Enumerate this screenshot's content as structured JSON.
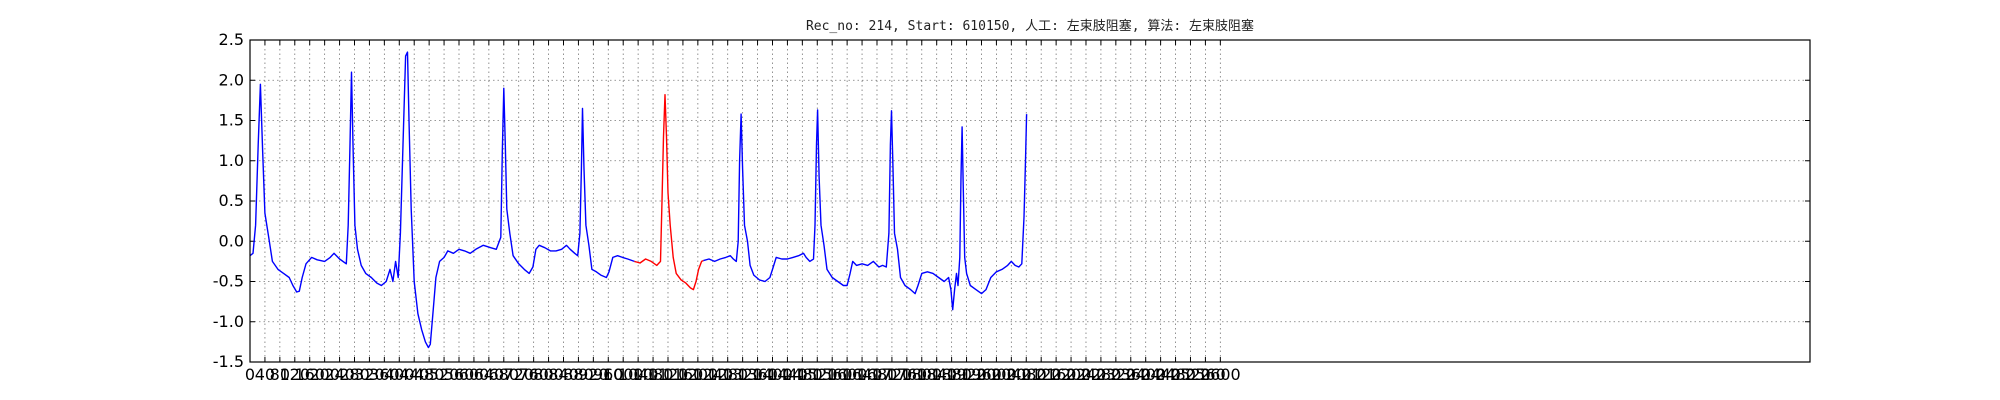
{
  "chart_data": {
    "type": "line",
    "title": "Rec_no: 214, Start: 610150, 人工: 左束肢阻塞, 算法: 左束肢阻塞",
    "xlabel": "",
    "ylabel": "",
    "xlim": [
      0,
      4180
    ],
    "ylim": [
      -1.5,
      2.5
    ],
    "grid": true,
    "x_ticks": [
      0,
      40,
      80,
      120,
      160,
      200,
      240,
      280,
      320,
      360,
      400,
      440,
      480,
      520,
      560,
      600,
      640,
      680,
      720,
      760,
      800,
      840,
      880,
      920,
      960,
      1000,
      1040,
      1080,
      1120,
      1160,
      1200,
      1240,
      1280,
      1320,
      1360,
      1400,
      1440,
      1480,
      1520,
      1560,
      1600,
      1640,
      1680,
      1720,
      1760,
      1800,
      1840,
      1880,
      1920,
      1960,
      2000,
      2040,
      2080,
      2120,
      2160,
      2200,
      2240,
      2280,
      2320,
      2360,
      2400,
      2440,
      2480,
      2520,
      2560,
      2600
    ],
    "y_ticks": [
      "2.5",
      "2.0",
      "1.5",
      "1.0",
      "0.5",
      "0.0",
      "-0.5",
      "-1.0",
      "-1.5"
    ],
    "series": [
      {
        "color": "#0000ff",
        "points": [
          [
            0,
            -0.18
          ],
          [
            8,
            -0.15
          ],
          [
            15,
            0.2
          ],
          [
            22,
            1.2
          ],
          [
            28,
            1.95
          ],
          [
            34,
            1.1
          ],
          [
            40,
            0.35
          ],
          [
            50,
            0.05
          ],
          [
            60,
            -0.25
          ],
          [
            75,
            -0.35
          ],
          [
            90,
            -0.4
          ],
          [
            105,
            -0.45
          ],
          [
            115,
            -0.55
          ],
          [
            125,
            -0.63
          ],
          [
            132,
            -0.62
          ],
          [
            140,
            -0.45
          ],
          [
            150,
            -0.28
          ],
          [
            165,
            -0.2
          ],
          [
            180,
            -0.23
          ],
          [
            200,
            -0.25
          ],
          [
            215,
            -0.2
          ],
          [
            225,
            -0.15
          ],
          [
            240,
            -0.22
          ],
          [
            258,
            -0.28
          ],
          [
            263,
            0.2
          ],
          [
            268,
            1.2
          ],
          [
            272,
            2.1
          ],
          [
            276,
            1.2
          ],
          [
            281,
            0.2
          ],
          [
            288,
            -0.1
          ],
          [
            298,
            -0.3
          ],
          [
            310,
            -0.4
          ],
          [
            325,
            -0.45
          ],
          [
            340,
            -0.52
          ],
          [
            352,
            -0.55
          ],
          [
            365,
            -0.5
          ],
          [
            375,
            -0.35
          ],
          [
            383,
            -0.5
          ],
          [
            390,
            -0.25
          ],
          [
            397,
            -0.45
          ],
          [
            403,
            0.1
          ],
          [
            410,
            1.2
          ],
          [
            417,
            2.3
          ],
          [
            422,
            2.35
          ],
          [
            426,
            1.5
          ],
          [
            432,
            0.4
          ],
          [
            440,
            -0.5
          ],
          [
            450,
            -0.9
          ],
          [
            460,
            -1.1
          ],
          [
            470,
            -1.25
          ],
          [
            478,
            -1.32
          ],
          [
            483,
            -1.28
          ],
          [
            490,
            -0.9
          ],
          [
            498,
            -0.45
          ],
          [
            508,
            -0.25
          ],
          [
            520,
            -0.2
          ],
          [
            530,
            -0.12
          ],
          [
            545,
            -0.15
          ],
          [
            560,
            -0.1
          ],
          [
            575,
            -0.12
          ],
          [
            590,
            -0.15
          ],
          [
            605,
            -0.1
          ],
          [
            625,
            -0.05
          ],
          [
            645,
            -0.08
          ],
          [
            660,
            -0.1
          ],
          [
            672,
            0.05
          ],
          [
            676,
            1.1
          ],
          [
            680,
            1.9
          ],
          [
            684,
            1.2
          ],
          [
            688,
            0.4
          ],
          [
            696,
            0.1
          ],
          [
            705,
            -0.18
          ],
          [
            720,
            -0.28
          ],
          [
            735,
            -0.35
          ],
          [
            748,
            -0.4
          ],
          [
            758,
            -0.32
          ],
          [
            766,
            -0.1
          ],
          [
            775,
            -0.05
          ],
          [
            790,
            -0.08
          ],
          [
            805,
            -0.12
          ],
          [
            820,
            -0.12
          ],
          [
            835,
            -0.1
          ],
          [
            848,
            -0.05
          ],
          [
            858,
            -0.1
          ],
          [
            870,
            -0.15
          ],
          [
            878,
            -0.18
          ],
          [
            884,
            0.1
          ],
          [
            888,
            0.9
          ],
          [
            891,
            1.65
          ],
          [
            895,
            0.9
          ],
          [
            900,
            0.2
          ],
          [
            908,
            -0.05
          ],
          [
            916,
            -0.35
          ],
          [
            928,
            -0.38
          ],
          [
            940,
            -0.42
          ],
          [
            955,
            -0.45
          ],
          [
            962,
            -0.38
          ],
          [
            972,
            -0.2
          ],
          [
            985,
            -0.18
          ],
          [
            998,
            -0.2
          ],
          [
            1012,
            -0.22
          ],
          [
            1030,
            -0.25
          ]
        ]
      },
      {
        "color": "#ff0000",
        "points": [
          [
            1030,
            -0.25
          ],
          [
            1045,
            -0.27
          ],
          [
            1060,
            -0.22
          ],
          [
            1075,
            -0.25
          ],
          [
            1090,
            -0.3
          ],
          [
            1100,
            -0.25
          ],
          [
            1104,
            0.5
          ],
          [
            1108,
            1.3
          ],
          [
            1112,
            1.82
          ],
          [
            1116,
            1.3
          ],
          [
            1120,
            0.6
          ],
          [
            1126,
            0.2
          ],
          [
            1134,
            -0.2
          ],
          [
            1142,
            -0.4
          ],
          [
            1155,
            -0.48
          ],
          [
            1168,
            -0.52
          ],
          [
            1180,
            -0.58
          ],
          [
            1188,
            -0.6
          ],
          [
            1195,
            -0.5
          ],
          [
            1202,
            -0.35
          ],
          [
            1210,
            -0.25
          ],
          [
            1215,
            -0.24
          ]
        ]
      },
      {
        "color": "#0000ff",
        "points": [
          [
            1215,
            -0.24
          ],
          [
            1230,
            -0.22
          ],
          [
            1245,
            -0.25
          ],
          [
            1260,
            -0.22
          ],
          [
            1275,
            -0.2
          ],
          [
            1287,
            -0.18
          ],
          [
            1295,
            -0.22
          ],
          [
            1303,
            -0.25
          ],
          [
            1308,
            0.0
          ],
          [
            1312,
            1.0
          ],
          [
            1316,
            1.58
          ],
          [
            1320,
            0.9
          ],
          [
            1325,
            0.2
          ],
          [
            1333,
            0.0
          ],
          [
            1340,
            -0.3
          ],
          [
            1350,
            -0.42
          ],
          [
            1365,
            -0.48
          ],
          [
            1380,
            -0.5
          ],
          [
            1393,
            -0.45
          ],
          [
            1400,
            -0.35
          ],
          [
            1410,
            -0.2
          ],
          [
            1425,
            -0.22
          ],
          [
            1440,
            -0.22
          ],
          [
            1455,
            -0.2
          ],
          [
            1470,
            -0.18
          ],
          [
            1483,
            -0.15
          ],
          [
            1490,
            -0.2
          ],
          [
            1500,
            -0.25
          ],
          [
            1510,
            -0.22
          ],
          [
            1514,
            0.2
          ],
          [
            1518,
            1.2
          ],
          [
            1521,
            1.63
          ],
          [
            1525,
            0.8
          ],
          [
            1530,
            0.2
          ],
          [
            1538,
            -0.05
          ],
          [
            1546,
            -0.35
          ],
          [
            1560,
            -0.45
          ],
          [
            1575,
            -0.5
          ],
          [
            1590,
            -0.55
          ],
          [
            1600,
            -0.55
          ],
          [
            1608,
            -0.4
          ],
          [
            1615,
            -0.25
          ],
          [
            1625,
            -0.3
          ],
          [
            1640,
            -0.28
          ],
          [
            1655,
            -0.3
          ],
          [
            1670,
            -0.25
          ],
          [
            1685,
            -0.32
          ],
          [
            1695,
            -0.3
          ],
          [
            1705,
            -0.32
          ],
          [
            1712,
            0.1
          ],
          [
            1716,
            1.2
          ],
          [
            1719,
            1.62
          ],
          [
            1723,
            0.9
          ],
          [
            1727,
            0.1
          ],
          [
            1735,
            -0.1
          ],
          [
            1743,
            -0.45
          ],
          [
            1755,
            -0.55
          ],
          [
            1770,
            -0.6
          ],
          [
            1782,
            -0.65
          ],
          [
            1790,
            -0.55
          ],
          [
            1800,
            -0.4
          ],
          [
            1815,
            -0.38
          ],
          [
            1830,
            -0.4
          ],
          [
            1845,
            -0.45
          ],
          [
            1860,
            -0.5
          ],
          [
            1872,
            -0.45
          ],
          [
            1878,
            -0.6
          ],
          [
            1883,
            -0.85
          ],
          [
            1888,
            -0.6
          ],
          [
            1893,
            -0.4
          ],
          [
            1897,
            -0.55
          ],
          [
            1902,
            -0.2
          ],
          [
            1905,
            0.8
          ],
          [
            1908,
            1.42
          ],
          [
            1911,
            0.7
          ],
          [
            1915,
            -0.2
          ],
          [
            1920,
            -0.4
          ],
          [
            1930,
            -0.55
          ],
          [
            1945,
            -0.6
          ],
          [
            1960,
            -0.65
          ],
          [
            1972,
            -0.6
          ],
          [
            1985,
            -0.45
          ],
          [
            2000,
            -0.38
          ],
          [
            2015,
            -0.35
          ],
          [
            2030,
            -0.3
          ],
          [
            2040,
            -0.25
          ],
          [
            2050,
            -0.3
          ],
          [
            2060,
            -0.32
          ],
          [
            2068,
            -0.28
          ],
          [
            2074,
            0.3
          ],
          [
            2078,
            1.0
          ],
          [
            2081,
            1.58
          ]
        ]
      }
    ]
  }
}
